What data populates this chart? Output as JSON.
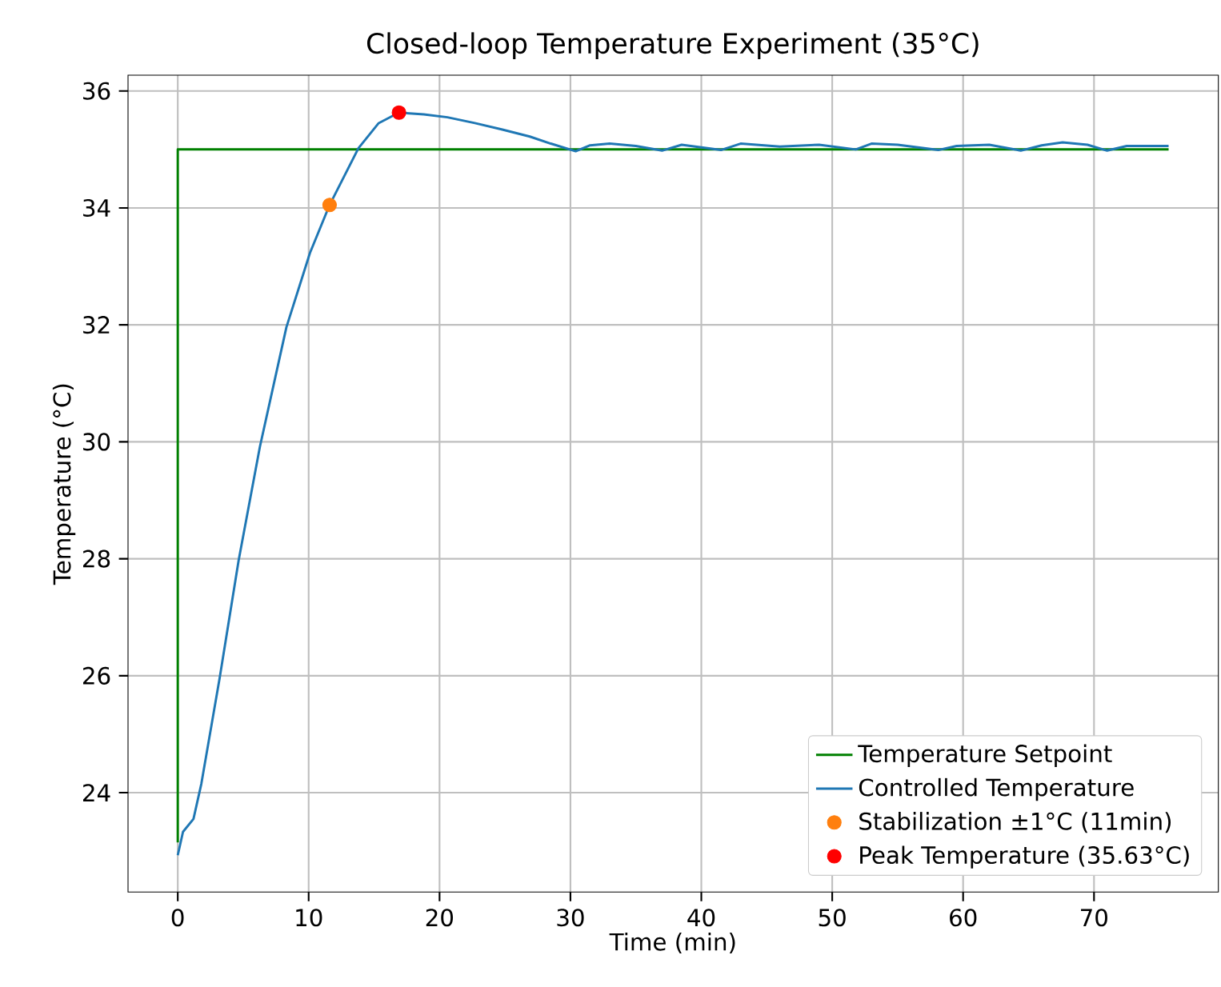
{
  "chart_data": {
    "type": "line",
    "title": "Closed-loop Temperature Experiment (35°C)",
    "xlabel": "Time (min)",
    "ylabel": "Temperature (°C)",
    "xlim": [
      -3.8,
      79.5
    ],
    "ylim": [
      22.3,
      36.27
    ],
    "xticks": [
      0,
      10,
      20,
      30,
      40,
      50,
      60,
      70
    ],
    "yticks": [
      24,
      26,
      28,
      30,
      32,
      34,
      36
    ],
    "grid": true,
    "legend": "bottom right",
    "series": [
      {
        "name": "Temperature Setpoint",
        "color": "#008000",
        "x": [
          0,
          0,
          75.7
        ],
        "values": [
          23.15,
          35,
          35
        ]
      },
      {
        "name": "Controlled Temperature",
        "color": "#1f77b4",
        "x": [
          0,
          0.4,
          1.2,
          1.8,
          3.2,
          4.65,
          6.27,
          8.3,
          10.1,
          11.6,
          13.8,
          15.35,
          16.9,
          18.8,
          20.6,
          22.7,
          24.8,
          26.9,
          28.5,
          30.4,
          31.5,
          33,
          35,
          37,
          38.5,
          41.5,
          43,
          46,
          49,
          51.8,
          53,
          55,
          58.1,
          59.5,
          62,
          64.4,
          66,
          67.6,
          69.5,
          71,
          72.5,
          75.7
        ],
        "values": [
          22.93,
          23.33,
          23.55,
          24.15,
          25.96,
          27.97,
          29.91,
          31.96,
          33.23,
          34.05,
          35.02,
          35.45,
          35.63,
          35.6,
          35.55,
          35.45,
          35.34,
          35.22,
          35.1,
          34.97,
          35.07,
          35.1,
          35.06,
          34.98,
          35.08,
          34.99,
          35.1,
          35.05,
          35.08,
          35.0,
          35.1,
          35.08,
          34.99,
          35.06,
          35.08,
          34.98,
          35.07,
          35.12,
          35.08,
          34.98,
          35.06,
          35.06
        ]
      },
      {
        "name": "Stabilization ±1°C (11min)",
        "type": "scatter",
        "color": "#ff7f0e",
        "x": [
          11.6
        ],
        "values": [
          34.05
        ]
      },
      {
        "name": "Peak Temperature (35.63°C)",
        "type": "scatter",
        "color": "#ff0000",
        "x": [
          16.9
        ],
        "values": [
          35.63
        ]
      }
    ]
  }
}
